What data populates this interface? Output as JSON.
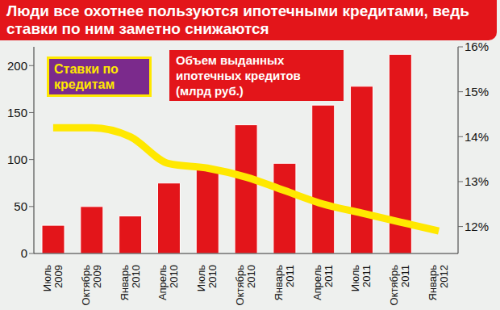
{
  "chart_data": {
    "type": "bar",
    "title": "Люди все охотнее пользуются ипотечными кредитами, ведь ставки по ним заметно снижаются",
    "categories": [
      "Июль 2009",
      "Октябрь 2009",
      "Январь 2010",
      "Апрель 2010",
      "Июль 2010",
      "Октябрь 2010",
      "Январь 2011",
      "Апрель 2011",
      "Июль 2011",
      "Октябрь 2011",
      "Январь 2012"
    ],
    "series": [
      {
        "name": "Объем выданных ипотечных кредитов (млрд руб.)",
        "type": "bar",
        "color": "#e3151a",
        "values": [
          30,
          50,
          40,
          75,
          90,
          137,
          96,
          158,
          178,
          212,
          null
        ]
      },
      {
        "name": "Ставки по кредитам",
        "type": "line",
        "color": "#ffe800",
        "axis": "y2",
        "values": [
          14.2,
          14.2,
          14.0,
          13.4,
          13.3,
          13.1,
          12.8,
          12.5,
          12.3,
          12.1,
          11.9
        ]
      }
    ],
    "ylim": [
      0,
      220
    ],
    "yticks": [
      0,
      50,
      100,
      150,
      200
    ],
    "y2lim": [
      11.4,
      16
    ],
    "y2ticks": [
      {
        "value": 12,
        "label": "12%"
      },
      {
        "value": 13,
        "label": "13%"
      },
      {
        "value": 14,
        "label": "14%"
      },
      {
        "value": 15,
        "label": "15%"
      },
      {
        "value": 16,
        "label": "16%"
      }
    ],
    "grid": false
  }
}
